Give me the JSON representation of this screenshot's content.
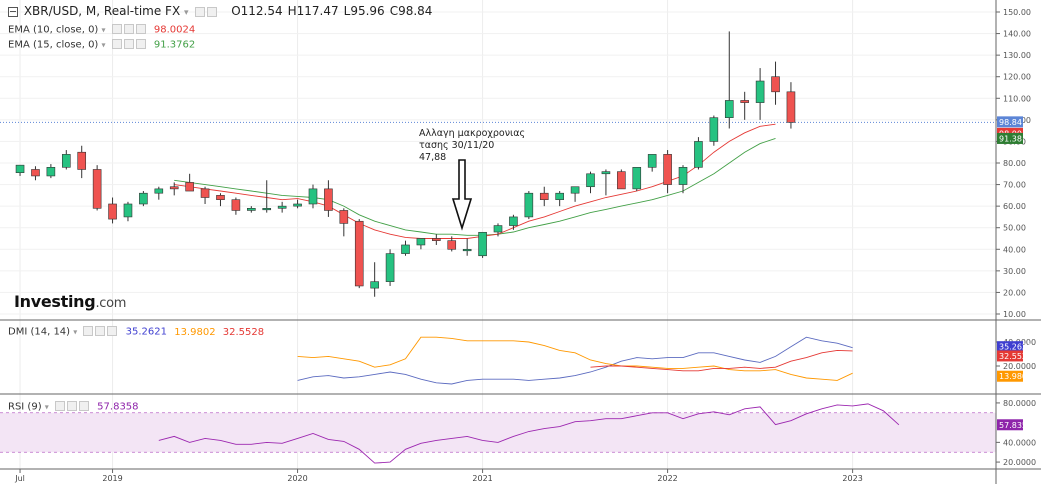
{
  "header": {
    "collapse_icon": "minus-square-icon",
    "instrument": "XBR/USD, M, Real-time FX",
    "ohlc": {
      "o": "O112.54",
      "h": "H117.47",
      "l": "L95.96",
      "c": "C98.84"
    }
  },
  "indicators": {
    "ema10": {
      "label": "EMA (10, close, 0)",
      "value": "98.0024",
      "color": "#e53935"
    },
    "ema15": {
      "label": "EMA (15, close, 0)",
      "value": "91.3762",
      "color": "#43a047"
    },
    "dmi": {
      "label": "DMI (14, 14)",
      "plus": "35.2621",
      "minus": "13.9802",
      "adx": "32.5528"
    },
    "rsi": {
      "label": "RSI (9)",
      "value": "57.8358"
    }
  },
  "branding": {
    "logo_main": "Investing",
    "logo_suffix": ".com"
  },
  "annotation": {
    "lines": [
      "Αλλαγη μακροχρονιας",
      "τασης 30/11/20",
      "47,88"
    ]
  },
  "colors": {
    "up": "#26c281",
    "down": "#ef5350",
    "ema10": "#e53935",
    "ema15": "#43a047",
    "di_plus": "#5c6bc0",
    "di_minus": "#ff9800",
    "adx": "#e53935",
    "rsi": "#9c27b0",
    "last_price_tag": "#5c85d6",
    "ema10_tag": "#e53935",
    "ema15_tag": "#2e7d32",
    "di_plus_tag": "#3f3fd0",
    "adx_tag": "#e53935",
    "di_minus_tag": "#ff9800",
    "rsi_tag": "#8e24aa"
  },
  "chart_data": [
    {
      "type": "candlestick",
      "title": "XBR/USD, M, Real-time FX",
      "ylim": [
        10,
        150
      ],
      "y_ticks": [
        "150.00",
        "140.00",
        "130.00",
        "120.00",
        "110.00",
        "100.00",
        "90.00",
        "80.00",
        "70.00",
        "60.00",
        "50.00",
        "40.00",
        "30.00",
        "20.00",
        "10.00"
      ],
      "x_ticks": [
        "Jul",
        "2019",
        "2020",
        "2021",
        "2022",
        "2023"
      ],
      "x_tick_indices": [
        0,
        6,
        18,
        30,
        42,
        54
      ],
      "x_range": [
        -1.3,
        63.3
      ],
      "ohlc": [
        [
          75.5,
          79,
          74,
          79
        ],
        [
          77,
          78.5,
          72,
          74
        ],
        [
          74,
          79.5,
          73,
          78
        ],
        [
          78,
          86,
          77,
          84
        ],
        [
          85,
          88,
          73,
          77
        ],
        [
          77,
          79,
          58,
          59
        ],
        [
          61,
          64,
          52,
          54
        ],
        [
          55,
          62,
          53,
          61
        ],
        [
          61,
          67,
          60,
          66
        ],
        [
          66,
          69,
          63,
          68
        ],
        [
          69,
          71,
          65,
          68
        ],
        [
          71,
          75,
          67,
          67
        ],
        [
          68,
          69,
          61,
          64
        ],
        [
          65,
          66,
          60,
          63
        ],
        [
          63,
          64,
          56,
          58
        ],
        [
          58,
          60,
          57,
          59
        ],
        [
          59,
          72,
          57,
          59
        ],
        [
          59,
          62,
          57,
          60
        ],
        [
          60,
          63,
          59,
          61
        ],
        [
          61,
          70,
          59,
          68
        ],
        [
          68,
          72,
          55,
          58
        ],
        [
          58,
          59,
          46,
          52
        ],
        [
          53,
          54,
          22,
          23
        ],
        [
          22,
          34,
          18,
          25
        ],
        [
          25,
          40,
          23,
          38
        ],
        [
          38,
          44,
          37,
          42
        ],
        [
          42,
          45,
          40,
          45
        ],
        [
          45,
          47,
          42,
          44
        ],
        [
          44,
          46,
          39,
          40
        ],
        [
          40,
          45,
          37,
          40
        ],
        [
          37,
          48,
          36,
          47.88
        ],
        [
          48,
          52,
          46,
          51
        ],
        [
          51,
          56,
          49,
          55
        ],
        [
          55,
          67,
          54,
          66
        ],
        [
          66,
          69,
          60,
          63
        ],
        [
          63,
          67,
          60,
          66
        ],
        [
          66,
          69,
          62,
          69
        ],
        [
          69,
          76,
          66,
          75
        ],
        [
          75,
          77,
          65,
          76
        ],
        [
          76,
          77,
          68,
          68
        ],
        [
          68,
          78,
          67,
          78
        ],
        [
          78,
          84,
          76,
          84
        ],
        [
          84,
          86,
          66,
          70
        ],
        [
          70,
          79,
          66,
          78
        ],
        [
          78,
          92,
          77,
          90
        ],
        [
          90,
          102,
          88,
          101
        ],
        [
          101,
          141,
          96,
          109
        ],
        [
          109,
          113,
          100,
          108
        ],
        [
          108,
          124,
          100,
          118
        ],
        [
          120,
          127,
          107,
          113
        ],
        [
          113,
          117.47,
          95.96,
          98.84
        ]
      ],
      "series": [
        {
          "name": "EMA (10, close, 0)",
          "start_index": 10,
          "values": [
            70,
            69,
            68,
            67,
            66,
            65,
            64,
            63,
            63.5,
            62,
            60,
            56,
            52,
            49,
            47,
            45.5,
            45,
            45,
            45,
            45,
            46,
            47,
            50,
            53,
            55,
            57.5,
            60,
            62,
            64,
            65.5,
            67,
            69,
            71.5,
            74,
            79,
            85,
            90,
            94,
            97,
            98
          ]
        },
        {
          "name": "EMA (15, close, 0)",
          "start_index": 10,
          "values": [
            72,
            71,
            70,
            69,
            68,
            67,
            66,
            65,
            64.5,
            64,
            63,
            60,
            56,
            53,
            51,
            49,
            48,
            47,
            47,
            46.5,
            46.5,
            47,
            48,
            50,
            51.5,
            53,
            55,
            57,
            58.5,
            60,
            61.5,
            63,
            65,
            67,
            71,
            75,
            80,
            85,
            89,
            91.4
          ]
        }
      ],
      "price_tags": [
        "98.84",
        "98.00",
        "91.38"
      ],
      "last_price": 98.84
    },
    {
      "type": "line",
      "title": "DMI (14, 14)",
      "ylim": [
        0,
        50
      ],
      "y_ticks": [
        "40.0000",
        "20.0000"
      ],
      "start_index": 18,
      "series": [
        {
          "name": "DI+",
          "values": [
            8,
            11,
            12,
            10,
            11,
            13,
            15,
            13,
            9,
            6,
            5,
            8,
            9,
            9,
            9,
            8,
            9,
            10,
            12,
            15,
            19,
            24,
            27,
            26,
            27,
            27,
            31,
            31,
            28,
            25,
            23,
            28,
            36,
            44,
            41,
            39,
            35.2621
          ]
        },
        {
          "name": "DI-",
          "values": [
            28,
            27,
            28,
            26,
            24,
            19,
            21,
            26,
            44,
            44,
            43,
            41,
            41,
            41,
            41,
            40,
            37,
            33,
            31,
            25,
            22,
            20,
            20,
            19,
            18,
            18,
            19,
            20,
            17,
            16,
            16,
            17,
            13,
            10,
            9,
            8,
            13.9802
          ]
        },
        {
          "name": "ADX",
          "values": [
            null,
            null,
            null,
            null,
            null,
            null,
            null,
            null,
            null,
            null,
            null,
            null,
            null,
            null,
            null,
            null,
            null,
            null,
            null,
            19,
            20,
            20,
            19,
            18,
            17,
            16,
            16,
            18,
            18,
            19,
            18,
            19,
            24,
            27,
            31,
            33,
            32.5528
          ]
        }
      ],
      "value_tags": [
        "35.2621",
        "32.5528",
        "13.9802"
      ]
    },
    {
      "type": "line",
      "title": "RSI (9)",
      "ylim": [
        15,
        85
      ],
      "y_ticks": [
        "80.0000",
        "40.0000",
        "20.0000"
      ],
      "band": [
        30,
        70
      ],
      "start_index": 9,
      "series": [
        {
          "name": "RSI (9)",
          "values": [
            42,
            46,
            40,
            44,
            42,
            38,
            38,
            40,
            39,
            44,
            49,
            43,
            41,
            33,
            19,
            20,
            33,
            39,
            42,
            44,
            46,
            42,
            40,
            46,
            51,
            54,
            56,
            61,
            62,
            64,
            64,
            67,
            70,
            70,
            64,
            69,
            71,
            68,
            74,
            76,
            58,
            62,
            69,
            74,
            78,
            77,
            79,
            72,
            57.8358
          ]
        }
      ],
      "value_tags": [
        "57.8358"
      ]
    }
  ]
}
